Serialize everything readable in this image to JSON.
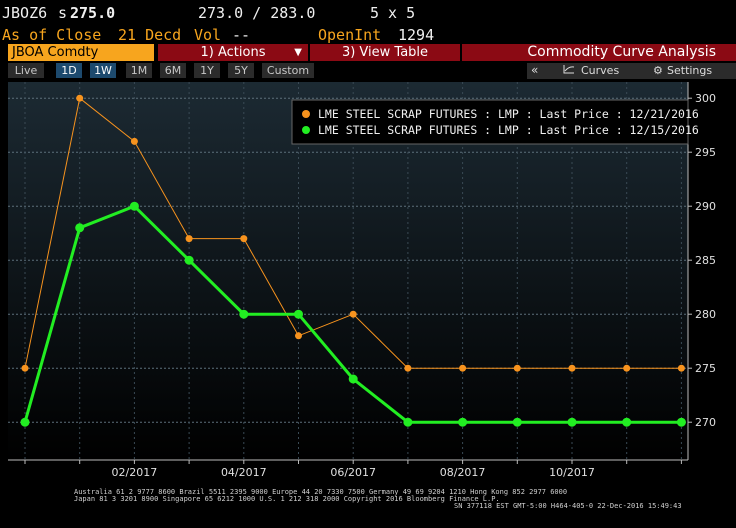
{
  "header": {
    "ticker": "JBOZ6",
    "price_prefix": "s",
    "price": "275.0",
    "bid_ask": "273.0 / 283.0",
    "size": "5 x 5",
    "as_of": "As of Close",
    "date": "21 Decd",
    "vol_label": "Vol",
    "vol_value": "--",
    "openint_label": "OpenInt",
    "openint_value": "1294"
  },
  "menubar": {
    "security": "JBOA Comdty",
    "actions": "1) Actions",
    "view_table": "3) View Table",
    "title": "Commodity Curve Analysis"
  },
  "toolbar": {
    "tabs": [
      "Live",
      "1D",
      "1W",
      "1M",
      "6M",
      "1Y",
      "5Y",
      "Custom"
    ],
    "active_tabs": [
      "1D",
      "1W"
    ],
    "collapse": "«",
    "curves": "Curves",
    "settings": "Settings"
  },
  "chart_data": {
    "type": "line",
    "x": [
      "12/2016",
      "01/2017",
      "02/2017",
      "03/2017",
      "04/2017",
      "05/2017",
      "06/2017",
      "07/2017",
      "08/2017",
      "09/2017",
      "10/2017",
      "11/2017",
      "12/2017"
    ],
    "x_tick_labels": [
      "02/2017",
      "04/2017",
      "06/2017",
      "08/2017",
      "10/2017"
    ],
    "y_ticks": [
      270,
      275,
      280,
      285,
      290,
      295,
      300
    ],
    "ylim": [
      266.5,
      301.5
    ],
    "series": [
      {
        "name": "LME STEEL SCRAP FUTURES : LMP : Last Price : 12/21/2016",
        "color": "#f7931e",
        "values": [
          275,
          300,
          296,
          287,
          287,
          278,
          280,
          275,
          275,
          275,
          275,
          275,
          275
        ]
      },
      {
        "name": "LME STEEL SCRAP FUTURES : LMP : Last Price : 12/15/2016",
        "color": "#22ee22",
        "values": [
          270,
          288,
          290,
          285,
          280,
          280,
          274,
          270,
          270,
          270,
          270,
          270,
          270
        ]
      }
    ],
    "grid": true,
    "legend": "top-right"
  },
  "footer": {
    "line1": "Australia 61 2 9777 8600 Brazil 5511 2395 9000 Europe 44 20 7330 7500 Germany 49 69 9204 1210 Hong Kong 852 2977 6000",
    "line2": "Japan 81 3 3201 8900        Singapore 65 6212 1000        U.S. 1 212 318 2000          Copyright 2016 Bloomberg Finance L.P.",
    "line3": "SN 377118 EST  GMT-5:00 H464-405-0 22-Dec-2016 15:49:43"
  }
}
